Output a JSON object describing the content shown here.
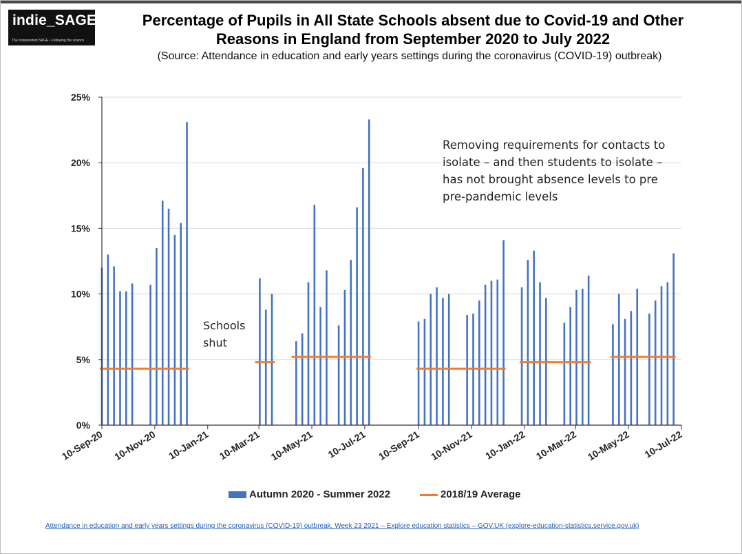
{
  "logo": {
    "text": "indie_SAGE",
    "tagline": "The Independent SAGE • Following the science"
  },
  "title_line1": "Percentage of Pupils in All State Schools absent due to Covid-19 and Other",
  "title_line2": "Reasons in England from September 2020 to July 2022",
  "subtitle": "(Source: Attendance in education and early years settings during the coronavirus (COVID-19) outbreak)",
  "annotation_main": [
    "Removing requirements for contacts to",
    "isolate – and then students to isolate –",
    "has not brought absence levels to pre",
    "pre-pandemic levels"
  ],
  "annotation_shut": [
    "Schools",
    "shut"
  ],
  "footer_link": "Attendance in education and early years settings during the coronavirus (COVID-19) outbreak, Week 23 2021 – Explore education statistics – GOV.UK (explore-education-statistics.service.gov.uk)",
  "colors": {
    "bars": "#4472C4",
    "average": "#ED7D31",
    "grid": "#d9d9d9"
  },
  "chart_data": {
    "type": "bar",
    "title": "Percentage of Pupils in All State Schools absent due to Covid-19 and Other Reasons in England from September 2020 to July 2022",
    "xlabel": "",
    "ylabel": "",
    "xlim": [
      "2020-09-10",
      "2022-07-10"
    ],
    "ylim": [
      0,
      25
    ],
    "y_ticks": [
      "0%",
      "5%",
      "10%",
      "15%",
      "20%",
      "25%"
    ],
    "x_ticks": [
      {
        "date": "2020-09-10",
        "label": "10-Sep-20"
      },
      {
        "date": "2020-11-10",
        "label": "10-Nov-20"
      },
      {
        "date": "2021-01-10",
        "label": "10-Jan-21"
      },
      {
        "date": "2021-03-10",
        "label": "10-Mar-21"
      },
      {
        "date": "2021-05-10",
        "label": "10-May-21"
      },
      {
        "date": "2021-07-10",
        "label": "10-Jul-21"
      },
      {
        "date": "2021-09-10",
        "label": "10-Sep-21"
      },
      {
        "date": "2021-11-10",
        "label": "10-Nov-21"
      },
      {
        "date": "2022-01-10",
        "label": "10-Jan-22"
      },
      {
        "date": "2022-03-10",
        "label": "10-Mar-22"
      },
      {
        "date": "2022-05-10",
        "label": "10-May-22"
      },
      {
        "date": "2022-07-10",
        "label": "10-Jul-22"
      }
    ],
    "grid": true,
    "legend_position": "bottom",
    "series": [
      {
        "name": "Autumn 2020 - Summer 2022",
        "kind": "bar",
        "points": [
          {
            "x": "2020-09-10",
            "y": 12.0
          },
          {
            "x": "2020-09-17",
            "y": 13.0
          },
          {
            "x": "2020-09-24",
            "y": 12.1
          },
          {
            "x": "2020-10-01",
            "y": 10.2
          },
          {
            "x": "2020-10-08",
            "y": 10.2
          },
          {
            "x": "2020-10-15",
            "y": 10.8
          },
          {
            "x": "2020-11-05",
            "y": 10.7
          },
          {
            "x": "2020-11-12",
            "y": 13.5
          },
          {
            "x": "2020-11-19",
            "y": 17.1
          },
          {
            "x": "2020-11-26",
            "y": 16.5
          },
          {
            "x": "2020-12-03",
            "y": 14.5
          },
          {
            "x": "2020-12-10",
            "y": 15.4
          },
          {
            "x": "2020-12-17",
            "y": 23.1
          },
          {
            "x": "2021-03-11",
            "y": 11.2
          },
          {
            "x": "2021-03-18",
            "y": 8.8
          },
          {
            "x": "2021-03-25",
            "y": 10.0
          },
          {
            "x": "2021-04-22",
            "y": 6.4
          },
          {
            "x": "2021-04-29",
            "y": 7.0
          },
          {
            "x": "2021-05-06",
            "y": 10.9
          },
          {
            "x": "2021-05-13",
            "y": 16.8
          },
          {
            "x": "2021-05-20",
            "y": 9.0
          },
          {
            "x": "2021-05-27",
            "y": 11.8
          },
          {
            "x": "2021-06-10",
            "y": 7.6
          },
          {
            "x": "2021-06-17",
            "y": 10.3
          },
          {
            "x": "2021-06-24",
            "y": 12.6
          },
          {
            "x": "2021-07-01",
            "y": 16.6
          },
          {
            "x": "2021-07-08",
            "y": 19.6
          },
          {
            "x": "2021-07-15",
            "y": 23.3
          },
          {
            "x": "2021-09-10",
            "y": 7.9
          },
          {
            "x": "2021-09-17",
            "y": 8.1
          },
          {
            "x": "2021-09-24",
            "y": 10.0
          },
          {
            "x": "2021-10-01",
            "y": 10.5
          },
          {
            "x": "2021-10-08",
            "y": 9.7
          },
          {
            "x": "2021-10-15",
            "y": 10.0
          },
          {
            "x": "2021-11-05",
            "y": 8.4
          },
          {
            "x": "2021-11-12",
            "y": 8.5
          },
          {
            "x": "2021-11-19",
            "y": 9.5
          },
          {
            "x": "2021-11-26",
            "y": 10.7
          },
          {
            "x": "2021-12-03",
            "y": 11.0
          },
          {
            "x": "2021-12-10",
            "y": 11.1
          },
          {
            "x": "2021-12-17",
            "y": 14.1
          },
          {
            "x": "2022-01-07",
            "y": 10.5
          },
          {
            "x": "2022-01-14",
            "y": 12.6
          },
          {
            "x": "2022-01-21",
            "y": 13.3
          },
          {
            "x": "2022-01-28",
            "y": 10.9
          },
          {
            "x": "2022-02-04",
            "y": 9.7
          },
          {
            "x": "2022-02-25",
            "y": 7.8
          },
          {
            "x": "2022-03-04",
            "y": 9.0
          },
          {
            "x": "2022-03-11",
            "y": 10.3
          },
          {
            "x": "2022-03-18",
            "y": 10.4
          },
          {
            "x": "2022-03-25",
            "y": 11.4
          },
          {
            "x": "2022-04-22",
            "y": 7.7
          },
          {
            "x": "2022-04-29",
            "y": 10.0
          },
          {
            "x": "2022-05-06",
            "y": 8.1
          },
          {
            "x": "2022-05-13",
            "y": 8.7
          },
          {
            "x": "2022-05-20",
            "y": 10.4
          },
          {
            "x": "2022-06-03",
            "y": 8.5
          },
          {
            "x": "2022-06-10",
            "y": 9.5
          },
          {
            "x": "2022-06-17",
            "y": 10.6
          },
          {
            "x": "2022-06-24",
            "y": 10.9
          },
          {
            "x": "2022-07-01",
            "y": 13.1
          }
        ]
      },
      {
        "name": "2018/19 Average",
        "kind": "segments",
        "segments": [
          {
            "x0": "2020-09-10",
            "x1": "2020-12-17",
            "y": 4.3
          },
          {
            "x0": "2021-03-08",
            "x1": "2021-03-26",
            "y": 4.8
          },
          {
            "x0": "2021-04-19",
            "x1": "2021-07-15",
            "y": 5.2
          },
          {
            "x0": "2021-09-10",
            "x1": "2021-12-17",
            "y": 4.3
          },
          {
            "x0": "2022-01-07",
            "x1": "2022-03-25",
            "y": 4.8
          },
          {
            "x0": "2022-04-22",
            "x1": "2022-07-01",
            "y": 5.2
          }
        ]
      }
    ]
  }
}
